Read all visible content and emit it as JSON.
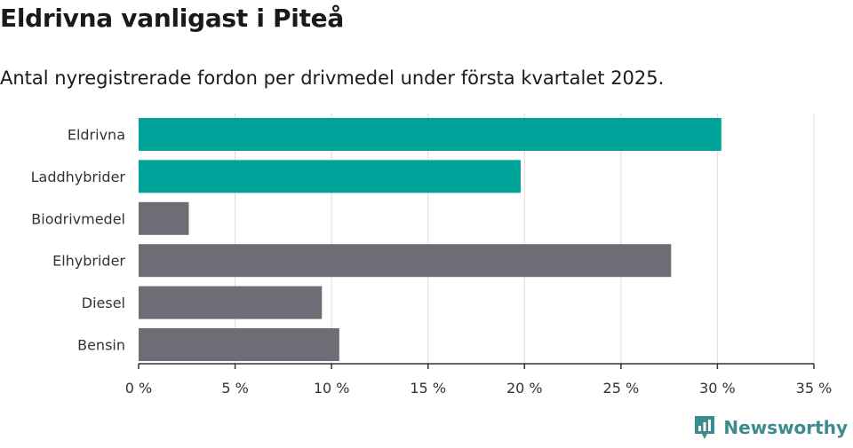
{
  "colors": {
    "highlight": "#00a39a",
    "default": "#6e6d75",
    "grid": "#dddddd",
    "axis": "#333333",
    "brand": "#3c8c8f"
  },
  "brand": {
    "name": "Newsworthy",
    "icon": "newsworthy-logo-icon"
  },
  "chart_data": {
    "type": "bar",
    "orientation": "horizontal",
    "title": "Eldrivna vanligast i Piteå",
    "subtitle": "Antal nyregistrerade fordon per drivmedel under första kvartalet 2025.",
    "categories": [
      "Eldrivna",
      "Laddhybrider",
      "Biodrivmedel",
      "Elhybrider",
      "Diesel",
      "Bensin"
    ],
    "values": [
      30.2,
      19.8,
      2.6,
      27.6,
      9.5,
      10.4
    ],
    "highlighted": [
      true,
      true,
      false,
      false,
      false,
      false
    ],
    "unit": "%",
    "xlim": [
      0,
      35
    ],
    "ticks": [
      0,
      5,
      10,
      15,
      20,
      25,
      30,
      35
    ],
    "tick_labels": [
      "0 %",
      "5 %",
      "10 %",
      "15 %",
      "20 %",
      "25 %",
      "30 %",
      "35 %"
    ],
    "grid": true
  }
}
